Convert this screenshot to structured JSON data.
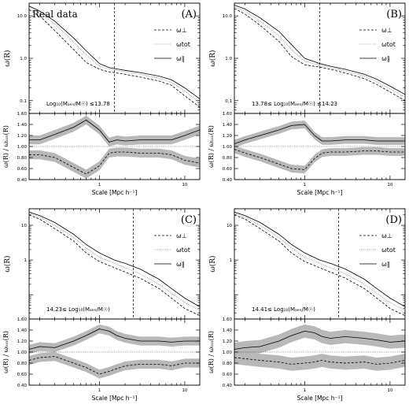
{
  "xlabel": "Scale [Mpc h⁻¹]",
  "ylabel_top": "ω(R)",
  "ylabel_bottom": "ω(R) / ωₗₒₙ(R)",
  "watermark": "Real data",
  "legend": [
    "ω⊥",
    "ωtot",
    "ω∥"
  ],
  "colors": {
    "perp": "#000000",
    "tot": "#888888",
    "par": "#000000",
    "band": "#b8b8b8"
  },
  "chart_data": [
    {
      "type": "line",
      "panel": "(A)",
      "annotation": "Log₁₀(Mₐₑₙ/M☉) ≤13.78",
      "xlim": [
        0.15,
        15
      ],
      "xscale": "log",
      "top": {
        "ylim": [
          0.05,
          20
        ],
        "yscale": "log",
        "yticks": [
          "0.1",
          "1.0",
          "10.0"
        ],
        "ytick_values": [
          0.1,
          1,
          10
        ],
        "vline_x": 1.5,
        "x": [
          0.15,
          0.2,
          0.3,
          0.5,
          0.7,
          1.0,
          1.3,
          1.6,
          2.0,
          3.0,
          5.0,
          7.0,
          10.0,
          15.0
        ],
        "series": [
          {
            "name": "ω⊥",
            "style": "dashed",
            "values": [
              14,
              10,
              4.5,
              1.6,
              0.8,
              0.55,
              0.48,
              0.45,
              0.42,
              0.36,
              0.29,
              0.23,
              0.13,
              0.07
            ]
          },
          {
            "name": "ωtot",
            "style": "dotted",
            "values": [
              15.5,
              11.5,
              6.5,
              2.4,
              1.2,
              0.65,
              0.55,
              0.52,
              0.48,
              0.42,
              0.34,
              0.27,
              0.17,
              0.09
            ]
          },
          {
            "name": "ω∥",
            "style": "solid",
            "values": [
              17,
              13,
              7.5,
              3.0,
              1.5,
              0.75,
              0.6,
              0.56,
              0.52,
              0.46,
              0.38,
              0.31,
              0.2,
              0.11
            ]
          }
        ]
      },
      "bottom": {
        "ylim": [
          0.4,
          1.6
        ],
        "yticks": [
          "0.40",
          "0.60",
          "0.80",
          "1.00",
          "1.20",
          "1.40",
          "1.60"
        ],
        "x": [
          0.15,
          0.2,
          0.3,
          0.5,
          0.7,
          1.0,
          1.3,
          1.6,
          2.0,
          3.0,
          5.0,
          7.0,
          10.0,
          15.0
        ],
        "band_halfwidth": 0.08,
        "series": [
          {
            "name": "ω∥/ωtot",
            "style": "solid",
            "values": [
              1.12,
              1.12,
              1.22,
              1.35,
              1.48,
              1.3,
              1.08,
              1.12,
              1.1,
              1.12,
              1.12,
              1.12,
              1.2,
              1.3
            ]
          },
          {
            "name": "ω⊥/ωtot",
            "style": "dashed",
            "values": [
              0.85,
              0.85,
              0.8,
              0.62,
              0.5,
              0.65,
              0.88,
              0.9,
              0.9,
              0.88,
              0.88,
              0.85,
              0.75,
              0.7
            ]
          }
        ]
      }
    },
    {
      "type": "line",
      "panel": "(B)",
      "annotation": "13.78≤ Log₁₀(Mₐₑₙ/M☉) ≤14.23",
      "xlim": [
        0.15,
        15
      ],
      "xscale": "log",
      "top": {
        "ylim": [
          0.05,
          20
        ],
        "yscale": "log",
        "yticks": [
          "0.1",
          "1.0",
          "10.0"
        ],
        "ytick_values": [
          0.1,
          1,
          10
        ],
        "vline_x": 1.5,
        "x": [
          0.15,
          0.2,
          0.3,
          0.5,
          0.7,
          1.0,
          1.5,
          2.0,
          3.0,
          5.0,
          7.0,
          10.0,
          15.0
        ],
        "series": [
          {
            "name": "ω⊥",
            "style": "dashed",
            "values": [
              15,
              11,
              6.0,
              2.5,
              1.1,
              0.7,
              0.62,
              0.55,
              0.45,
              0.33,
              0.24,
              0.16,
              0.1
            ]
          },
          {
            "name": "ωtot",
            "style": "dotted",
            "values": [
              16.5,
              13,
              7.5,
              3.4,
              1.6,
              0.85,
              0.68,
              0.6,
              0.5,
              0.38,
              0.28,
              0.19,
              0.12
            ]
          },
          {
            "name": "ω∥",
            "style": "solid",
            "values": [
              18,
              14.5,
              9.0,
              4.3,
              2.1,
              1.0,
              0.75,
              0.65,
              0.55,
              0.42,
              0.32,
              0.22,
              0.14
            ]
          }
        ]
      },
      "bottom": {
        "ylim": [
          0.4,
          1.6
        ],
        "yticks": [
          "0.40",
          "0.60",
          "0.80",
          "1.00",
          "1.20",
          "1.40",
          "1.60"
        ],
        "x": [
          0.15,
          0.2,
          0.3,
          0.5,
          0.7,
          1.0,
          1.3,
          1.6,
          2.0,
          3.0,
          5.0,
          7.0,
          10.0,
          15.0
        ],
        "band_halfwidth": 0.07,
        "series": [
          {
            "name": "ω∥/ωtot",
            "style": "solid",
            "values": [
              1.05,
              1.12,
              1.2,
              1.3,
              1.38,
              1.4,
              1.2,
              1.1,
              1.1,
              1.12,
              1.12,
              1.1,
              1.1,
              1.1
            ]
          },
          {
            "name": "ω⊥/ωtot",
            "style": "dashed",
            "values": [
              0.95,
              0.88,
              0.8,
              0.68,
              0.6,
              0.58,
              0.78,
              0.88,
              0.9,
              0.9,
              0.92,
              0.92,
              0.9,
              0.9
            ]
          }
        ]
      }
    },
    {
      "type": "line",
      "panel": "(C)",
      "annotation": "14.23≤ Log₁₀(Mₐₑₙ/M☉)",
      "xlim": [
        0.15,
        15
      ],
      "xscale": "log",
      "top": {
        "ylim": [
          0.02,
          30
        ],
        "yscale": "log",
        "yticks": [
          "1",
          "10"
        ],
        "ytick_values": [
          1,
          10
        ],
        "vline_x": 2.5,
        "x": [
          0.15,
          0.2,
          0.3,
          0.5,
          0.7,
          1.0,
          1.5,
          2.0,
          3.0,
          5.0,
          7.0,
          10.0,
          15.0
        ],
        "series": [
          {
            "name": "ω⊥",
            "style": "dashed",
            "values": [
              20,
              15,
              8,
              3.5,
              1.6,
              0.9,
              0.6,
              0.45,
              0.3,
              0.15,
              0.08,
              0.04,
              0.025
            ]
          },
          {
            "name": "ωtot",
            "style": "dotted",
            "values": [
              22,
              17,
              10,
              4.5,
              2.2,
              1.2,
              0.8,
              0.6,
              0.4,
              0.2,
              0.11,
              0.06,
              0.035
            ]
          },
          {
            "name": "ω∥",
            "style": "solid",
            "values": [
              24,
              19,
              12,
              5.5,
              2.8,
              1.6,
              1.0,
              0.8,
              0.55,
              0.28,
              0.15,
              0.08,
              0.045
            ]
          }
        ]
      },
      "bottom": {
        "ylim": [
          0.4,
          1.6
        ],
        "yticks": [
          "0.40",
          "0.60",
          "0.80",
          "1.00",
          "1.20",
          "1.40",
          "1.60"
        ],
        "x": [
          0.15,
          0.2,
          0.3,
          0.5,
          0.7,
          1.0,
          1.3,
          1.6,
          2.0,
          3.0,
          5.0,
          7.0,
          10.0,
          15.0
        ],
        "band_halfwidth": 0.08,
        "series": [
          {
            "name": "ω∥/ωtot",
            "style": "solid",
            "values": [
              1.05,
              1.1,
              1.08,
              1.2,
              1.3,
              1.42,
              1.38,
              1.3,
              1.25,
              1.2,
              1.2,
              1.18,
              1.2,
              1.2
            ]
          },
          {
            "name": "ω⊥/ωtot",
            "style": "dashed",
            "values": [
              0.85,
              0.9,
              0.92,
              0.8,
              0.72,
              0.6,
              0.65,
              0.7,
              0.75,
              0.78,
              0.78,
              0.75,
              0.8,
              0.8
            ]
          }
        ]
      }
    },
    {
      "type": "line",
      "panel": "(D)",
      "annotation": "14.41≤ Log₁₀(Mₐₑₙ/M☉)",
      "xlim": [
        0.15,
        15
      ],
      "xscale": "log",
      "top": {
        "ylim": [
          0.02,
          30
        ],
        "yscale": "log",
        "yticks": [
          "1",
          "10"
        ],
        "ytick_values": [
          1,
          10
        ],
        "vline_x": 2.5,
        "x": [
          0.15,
          0.2,
          0.3,
          0.5,
          0.7,
          1.0,
          1.5,
          2.0,
          3.0,
          5.0,
          7.0,
          10.0,
          15.0
        ],
        "series": [
          {
            "name": "ω⊥",
            "style": "dashed",
            "values": [
              20,
              15,
              8,
              3.5,
              1.6,
              0.9,
              0.6,
              0.45,
              0.3,
              0.15,
              0.08,
              0.04,
              0.025
            ]
          },
          {
            "name": "ωtot",
            "style": "dotted",
            "values": [
              22,
              17,
              10,
              4.5,
              2.2,
              1.2,
              0.8,
              0.6,
              0.4,
              0.2,
              0.11,
              0.06,
              0.035
            ]
          },
          {
            "name": "ω∥",
            "style": "solid",
            "values": [
              24,
              19,
              12,
              5.5,
              2.8,
              1.6,
              1.0,
              0.8,
              0.55,
              0.28,
              0.15,
              0.08,
              0.045
            ]
          }
        ]
      },
      "bottom": {
        "ylim": [
          0.4,
          1.6
        ],
        "yticks": [
          "0.40",
          "0.60",
          "0.80",
          "1.00",
          "1.20",
          "1.40",
          "1.60"
        ],
        "x": [
          0.15,
          0.2,
          0.3,
          0.5,
          0.7,
          1.0,
          1.3,
          1.6,
          2.0,
          3.0,
          5.0,
          7.0,
          10.0,
          15.0
        ],
        "band_halfwidth": 0.12,
        "series": [
          {
            "name": "ω∥/ωtot",
            "style": "solid",
            "values": [
              1.05,
              1.08,
              1.1,
              1.2,
              1.3,
              1.38,
              1.35,
              1.28,
              1.25,
              1.28,
              1.25,
              1.22,
              1.18,
              1.2
            ]
          },
          {
            "name": "ω⊥/ωtot",
            "style": "dashed",
            "values": [
              0.9,
              0.88,
              0.85,
              0.82,
              0.78,
              0.8,
              0.82,
              0.85,
              0.82,
              0.8,
              0.82,
              0.78,
              0.8,
              0.85
            ]
          }
        ]
      }
    }
  ]
}
